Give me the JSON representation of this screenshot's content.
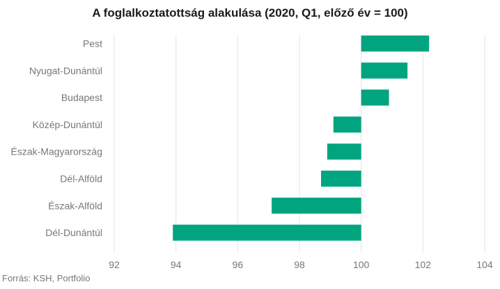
{
  "chart_data": {
    "type": "bar",
    "orientation": "horizontal",
    "title": "A foglalkoztatottság alakulása (2020, Q1, előző év = 100)",
    "categories": [
      "Pest",
      "Nyugat-Dunántúl",
      "Budapest",
      "Közép-Dunántúl",
      "Észak-Magyarország",
      "Dél-Alföld",
      "Észak-Alföld",
      "Dél-Dunántúl"
    ],
    "values": [
      102.2,
      101.5,
      100.9,
      99.1,
      98.9,
      98.7,
      97.1,
      93.9
    ],
    "baseline": 100,
    "xlim": [
      92,
      104
    ],
    "xticks": [
      "92",
      "94",
      "96",
      "98",
      "100",
      "102",
      "104"
    ],
    "xlabel": "",
    "ylabel": "",
    "grid": true,
    "bar_color": "#00a57f"
  },
  "source": "Forrás: KSH, Portfolio"
}
